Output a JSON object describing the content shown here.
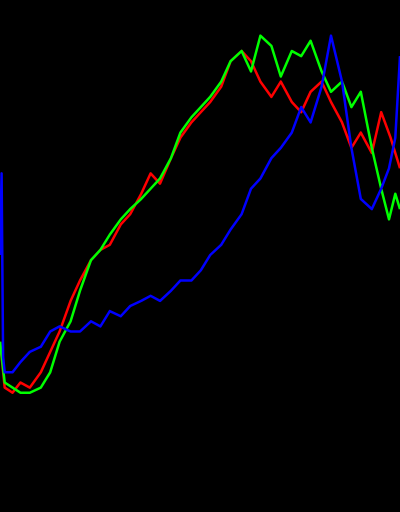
{
  "chart_data": {
    "type": "line",
    "title": "",
    "xlabel": "",
    "ylabel": "",
    "xlim": [
      0,
      255
    ],
    "ylim": [
      0,
      1
    ],
    "grid": false,
    "legend": "none",
    "background": "#000000",
    "series": [
      {
        "color": "#ff0000",
        "x": [
          0,
          3,
          8,
          13,
          19,
          26,
          32,
          38,
          45,
          51,
          58,
          64,
          70,
          77,
          83,
          90,
          96,
          102,
          109,
          115,
          122,
          128,
          134,
          141,
          147,
          154,
          160,
          166,
          173,
          179,
          186,
          192,
          198,
          205,
          211,
          218,
          224,
          230,
          237,
          243,
          249,
          255
        ],
        "y": [
          0.33,
          0.24,
          0.23,
          0.25,
          0.24,
          0.27,
          0.31,
          0.35,
          0.41,
          0.45,
          0.49,
          0.51,
          0.52,
          0.56,
          0.58,
          0.62,
          0.66,
          0.64,
          0.69,
          0.73,
          0.76,
          0.78,
          0.8,
          0.83,
          0.88,
          0.9,
          0.88,
          0.84,
          0.81,
          0.84,
          0.8,
          0.78,
          0.82,
          0.84,
          0.8,
          0.76,
          0.71,
          0.74,
          0.7,
          0.78,
          0.73,
          0.67
        ]
      },
      {
        "color": "#00ff00",
        "x": [
          0,
          3,
          8,
          13,
          19,
          26,
          32,
          38,
          45,
          51,
          58,
          64,
          70,
          77,
          83,
          90,
          96,
          102,
          109,
          115,
          122,
          128,
          134,
          141,
          147,
          154,
          160,
          166,
          173,
          179,
          186,
          192,
          198,
          205,
          211,
          218,
          224,
          230,
          237,
          243,
          248,
          252,
          255
        ],
        "y": [
          0.33,
          0.25,
          0.24,
          0.23,
          0.23,
          0.24,
          0.27,
          0.33,
          0.37,
          0.43,
          0.49,
          0.51,
          0.54,
          0.57,
          0.59,
          0.61,
          0.63,
          0.65,
          0.69,
          0.74,
          0.77,
          0.79,
          0.81,
          0.84,
          0.88,
          0.9,
          0.86,
          0.93,
          0.91,
          0.85,
          0.9,
          0.89,
          0.92,
          0.86,
          0.82,
          0.84,
          0.79,
          0.82,
          0.71,
          0.63,
          0.57,
          0.62,
          0.59
        ]
      },
      {
        "color": "#0000ff",
        "x": [
          0,
          1,
          2,
          3,
          8,
          13,
          19,
          26,
          32,
          38,
          45,
          51,
          58,
          64,
          70,
          77,
          83,
          90,
          96,
          102,
          109,
          115,
          122,
          128,
          134,
          141,
          147,
          154,
          160,
          166,
          173,
          179,
          186,
          192,
          198,
          205,
          211,
          218,
          224,
          230,
          237,
          243,
          248,
          252,
          255
        ],
        "y": [
          0.5,
          0.66,
          0.3,
          0.27,
          0.27,
          0.29,
          0.31,
          0.32,
          0.35,
          0.36,
          0.35,
          0.35,
          0.37,
          0.36,
          0.39,
          0.38,
          0.4,
          0.41,
          0.42,
          0.41,
          0.43,
          0.45,
          0.45,
          0.47,
          0.5,
          0.52,
          0.55,
          0.58,
          0.63,
          0.65,
          0.69,
          0.71,
          0.74,
          0.79,
          0.76,
          0.83,
          0.93,
          0.84,
          0.71,
          0.61,
          0.59,
          0.63,
          0.67,
          0.73,
          0.89
        ]
      }
    ]
  }
}
